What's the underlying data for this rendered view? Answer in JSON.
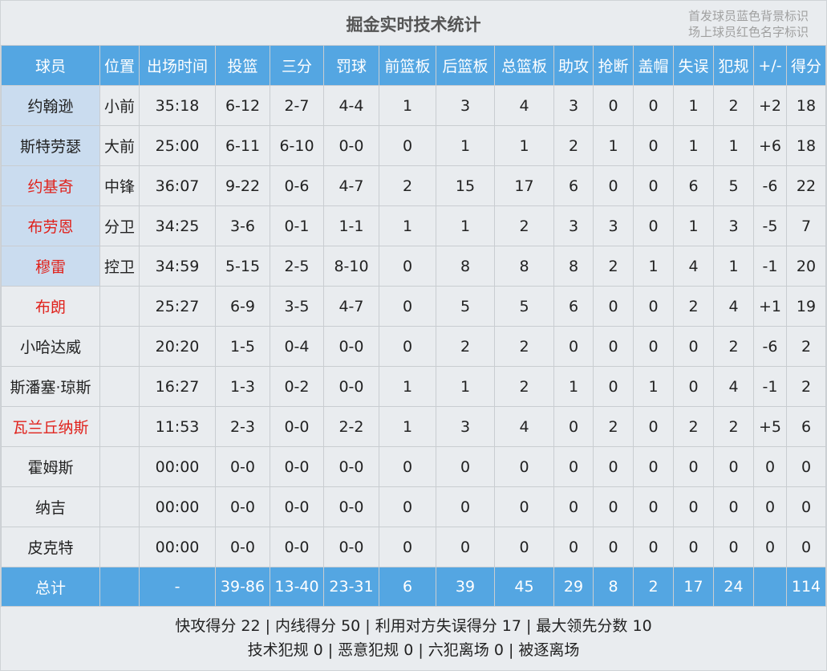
{
  "title": "掘金实时技术统计",
  "legend": [
    "首发球员蓝色背景标识",
    "场上球员红色名字标识"
  ],
  "colors": {
    "header": "#54a6e2",
    "starter_bg": "#cadcef",
    "on_court_name": "#e0221c"
  },
  "columns": [
    "球员",
    "位置",
    "出场时间",
    "投篮",
    "三分",
    "罚球",
    "前篮板",
    "后篮板",
    "总篮板",
    "助攻",
    "抢断",
    "盖帽",
    "失误",
    "犯规",
    "+/-",
    "得分"
  ],
  "players": [
    {
      "starter": true,
      "on_court": false,
      "cells": [
        "约翰逊",
        "小前",
        "35:18",
        "6-12",
        "2-7",
        "4-4",
        "1",
        "3",
        "4",
        "3",
        "0",
        "0",
        "1",
        "2",
        "+2",
        "18"
      ]
    },
    {
      "starter": true,
      "on_court": false,
      "cells": [
        "斯特劳瑟",
        "大前",
        "25:00",
        "6-11",
        "6-10",
        "0-0",
        "0",
        "1",
        "1",
        "2",
        "1",
        "0",
        "1",
        "1",
        "+6",
        "18"
      ]
    },
    {
      "starter": true,
      "on_court": true,
      "cells": [
        "约基奇",
        "中锋",
        "36:07",
        "9-22",
        "0-6",
        "4-7",
        "2",
        "15",
        "17",
        "6",
        "0",
        "0",
        "6",
        "5",
        "-6",
        "22"
      ]
    },
    {
      "starter": true,
      "on_court": true,
      "cells": [
        "布劳恩",
        "分卫",
        "34:25",
        "3-6",
        "0-1",
        "1-1",
        "1",
        "1",
        "2",
        "3",
        "3",
        "0",
        "1",
        "3",
        "-5",
        "7"
      ]
    },
    {
      "starter": true,
      "on_court": true,
      "cells": [
        "穆雷",
        "控卫",
        "34:59",
        "5-15",
        "2-5",
        "8-10",
        "0",
        "8",
        "8",
        "8",
        "2",
        "1",
        "4",
        "1",
        "-1",
        "20"
      ]
    },
    {
      "starter": false,
      "on_court": true,
      "cells": [
        "布朗",
        "",
        "25:27",
        "6-9",
        "3-5",
        "4-7",
        "0",
        "5",
        "5",
        "6",
        "0",
        "0",
        "2",
        "4",
        "+1",
        "19"
      ]
    },
    {
      "starter": false,
      "on_court": false,
      "cells": [
        "小哈达威",
        "",
        "20:20",
        "1-5",
        "0-4",
        "0-0",
        "0",
        "2",
        "2",
        "0",
        "0",
        "0",
        "0",
        "2",
        "-6",
        "2"
      ]
    },
    {
      "starter": false,
      "on_court": false,
      "cells": [
        "斯潘塞·琼斯",
        "",
        "16:27",
        "1-3",
        "0-2",
        "0-0",
        "1",
        "1",
        "2",
        "1",
        "0",
        "1",
        "0",
        "4",
        "-1",
        "2"
      ]
    },
    {
      "starter": false,
      "on_court": true,
      "cells": [
        "瓦兰丘纳斯",
        "",
        "11:53",
        "2-3",
        "0-0",
        "2-2",
        "1",
        "3",
        "4",
        "0",
        "2",
        "0",
        "2",
        "2",
        "+5",
        "6"
      ]
    },
    {
      "starter": false,
      "on_court": false,
      "cells": [
        "霍姆斯",
        "",
        "00:00",
        "0-0",
        "0-0",
        "0-0",
        "0",
        "0",
        "0",
        "0",
        "0",
        "0",
        "0",
        "0",
        "0",
        "0"
      ]
    },
    {
      "starter": false,
      "on_court": false,
      "cells": [
        "纳吉",
        "",
        "00:00",
        "0-0",
        "0-0",
        "0-0",
        "0",
        "0",
        "0",
        "0",
        "0",
        "0",
        "0",
        "0",
        "0",
        "0"
      ]
    },
    {
      "starter": false,
      "on_court": false,
      "cells": [
        "皮克特",
        "",
        "00:00",
        "0-0",
        "0-0",
        "0-0",
        "0",
        "0",
        "0",
        "0",
        "0",
        "0",
        "0",
        "0",
        "0",
        "0"
      ]
    }
  ],
  "totals": [
    "总计",
    "",
    "-",
    "39-86",
    "13-40",
    "23-31",
    "6",
    "39",
    "45",
    "29",
    "8",
    "2",
    "17",
    "24",
    "",
    "114"
  ],
  "footer": [
    "快攻得分 22 | 内线得分 50 | 利用对方失误得分 17 | 最大领先分数 10",
    "技术犯规 0 | 恶意犯规 0 | 六犯离场 0 | 被逐离场"
  ]
}
